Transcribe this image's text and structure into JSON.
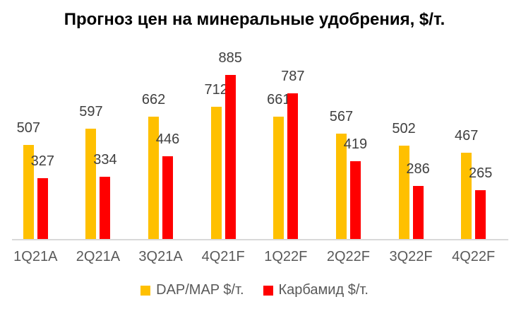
{
  "title": "Прогноз цен на минеральные удобрения, $/т.",
  "chart_data": {
    "type": "bar",
    "title": "Прогноз цен на минеральные удобрения, $/т.",
    "categories": [
      "1Q21A",
      "2Q21A",
      "3Q21A",
      "4Q21F",
      "1Q22F",
      "2Q22F",
      "3Q22F",
      "4Q22F"
    ],
    "series": [
      {
        "name": "DAP/MAP $/т.",
        "color": "#FFC000",
        "values": [
          507,
          597,
          662,
          712,
          661,
          567,
          502,
          467
        ]
      },
      {
        "name": "Карбамид $/т.",
        "color": "#FF0000",
        "values": [
          327,
          334,
          446,
          885,
          787,
          419,
          286,
          265
        ]
      }
    ],
    "ylim": [
      0,
      1000
    ],
    "grid": false,
    "y_axis_visible": false,
    "data_labels": true,
    "legend_position": "bottom",
    "colors": {
      "data_label": "#404040",
      "axis_label": "#595959",
      "legend_label": "#595959",
      "axis_line": "#D9D9D9",
      "title": "#000000",
      "background": "#FFFFFF"
    }
  }
}
